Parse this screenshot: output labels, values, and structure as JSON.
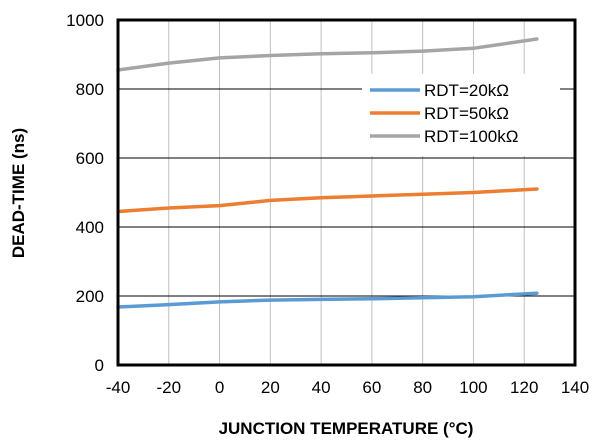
{
  "chart_data": {
    "type": "line",
    "title": "",
    "xlabel": "JUNCTION TEMPERATURE (°C)",
    "ylabel": "DEAD-TIME (ns)",
    "xlim": [
      -40,
      140
    ],
    "ylim": [
      0,
      1000
    ],
    "x_ticks": [
      -40,
      -20,
      0,
      20,
      40,
      60,
      80,
      100,
      120,
      140
    ],
    "y_ticks": [
      0,
      200,
      400,
      600,
      800,
      1000
    ],
    "grid": true,
    "legend_position": "right",
    "series": [
      {
        "name": "RDT=20kΩ",
        "color": "#5B9BD5",
        "x": [
          -40,
          -20,
          0,
          20,
          40,
          60,
          80,
          100,
          125
        ],
        "y": [
          168,
          175,
          183,
          188,
          190,
          192,
          195,
          198,
          208
        ]
      },
      {
        "name": "RDT=50kΩ",
        "color": "#ED7D31",
        "x": [
          -40,
          -20,
          0,
          20,
          40,
          60,
          80,
          100,
          125
        ],
        "y": [
          445,
          455,
          462,
          477,
          485,
          490,
          495,
          500,
          510
        ]
      },
      {
        "name": "RDT=100kΩ",
        "color": "#A5A5A5",
        "x": [
          -40,
          -20,
          0,
          20,
          40,
          60,
          80,
          100,
          125
        ],
        "y": [
          855,
          875,
          890,
          897,
          902,
          905,
          910,
          918,
          945
        ]
      }
    ]
  }
}
